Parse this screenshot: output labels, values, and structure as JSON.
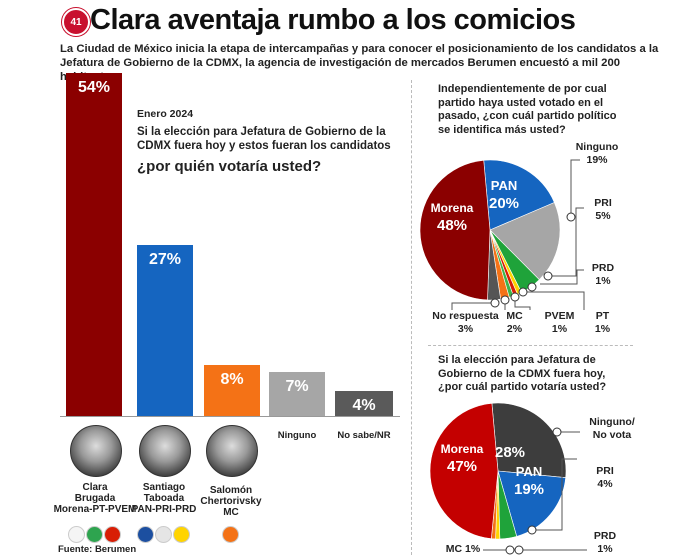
{
  "header": {
    "title": "Clara aventaja rumbo a los comicios",
    "logo": "41",
    "intro": "La Ciudad de México inicia la etapa de intercampañas y para conocer el posicionamiento de los candidatos a la Jefatura de Gobierno de la CDMX, la agencia de investigación de mercados Berumen encuestó a mil 200 habitantes."
  },
  "question": {
    "date": "Enero 2024",
    "line": "Si la elección para Jefatura de Gobierno de la CDMX fuera hoy y estos fueran los candidatos",
    "bold": "¿por quién votaría usted?"
  },
  "source": "Fuente: Berumen",
  "chart_data": [
    {
      "type": "bar",
      "title": "¿por quién votaría usted?",
      "categories": [
        "Clara Brugada Morena-PT-PVEM",
        "Santiago Taboada PAN-PRI-PRD",
        "Salomón Chertorivsky MC",
        "Ninguno",
        "No sabe/NR"
      ],
      "values": [
        54,
        27,
        8,
        7,
        4
      ],
      "labels": [
        "54%",
        "27%",
        "8%",
        "7%",
        "4%"
      ],
      "colors": [
        "#8b0000",
        "#1565c0",
        "#f47216",
        "#a6a6a6",
        "#5a5a5a"
      ],
      "ylim": [
        0,
        54
      ],
      "candidates": [
        {
          "name1": "Clara",
          "name2": "Brugada",
          "party": "Morena-PT-PVEM",
          "logos": [
            "#f5f5f5",
            "#2ea44f",
            "#d81e05"
          ]
        },
        {
          "name1": "Santiago",
          "name2": "Taboada",
          "party": "PAN-PRI-PRD",
          "logos": [
            "#1c4fa0",
            "#e5e5e5",
            "#ffd400"
          ]
        },
        {
          "name1": "Salomón",
          "name2": "Chertorivsky",
          "party": "MC",
          "logos": [
            "#f47216"
          ]
        }
      ],
      "option_labels": [
        "Ninguno",
        "No sabe/NR"
      ]
    },
    {
      "type": "pie",
      "title": "Independientemente de por cual partido haya usted votado en el pasado, ¿con cuál partido político se identifica más usted?",
      "slices": [
        {
          "name": "PAN",
          "value": 20,
          "color": "#1565c0"
        },
        {
          "name": "Ninguno",
          "value": 19,
          "color": "#a6a6a6"
        },
        {
          "name": "PRI",
          "value": 5,
          "color": "#1fa33a"
        },
        {
          "name": "PRD",
          "value": 1,
          "color": "#ffd400"
        },
        {
          "name": "PT",
          "value": 1,
          "color": "#d81e05"
        },
        {
          "name": "PVEM",
          "value": 1,
          "color": "#3cb44b"
        },
        {
          "name": "MC",
          "value": 2,
          "color": "#f47216"
        },
        {
          "name": "No respuesta",
          "value": 3,
          "color": "#555555"
        },
        {
          "name": "Morena",
          "value": 48,
          "color": "#8b0000"
        }
      ],
      "labels": {
        "Morena": "Morena",
        "Morena_v": "48%",
        "PAN": "PAN",
        "PAN_v": "20%",
        "Ninguno": "Ninguno",
        "Ninguno_v": "19%",
        "PRI": "PRI",
        "PRI_v": "5%",
        "PRD": "PRD",
        "PRD_v": "1%",
        "NR": "No respuesta",
        "NR_v": "3%",
        "MC": "MC",
        "MC_v": "2%",
        "PVEM": "PVEM",
        "PVEM_v": "1%",
        "PT": "PT",
        "PT_v": "1%"
      }
    },
    {
      "type": "pie",
      "title": "Si la elección para Jefatura de Gobierno de la CDMX fuera hoy, ¿por cuál partido votaría usted?",
      "slices": [
        {
          "name": "Ninguno/No vota",
          "value": 28,
          "color": "#3d3d3d"
        },
        {
          "name": "PAN",
          "value": 19,
          "color": "#1565c0"
        },
        {
          "name": "PRI",
          "value": 4,
          "color": "#1fa33a"
        },
        {
          "name": "PRD",
          "value": 1,
          "color": "#ffd400"
        },
        {
          "name": "MC",
          "value": 1,
          "color": "#f47216"
        },
        {
          "name": "Morena",
          "value": 47,
          "color": "#c40000"
        }
      ],
      "labels": {
        "Ninguno1": "Ninguno/",
        "Ninguno2": "No vota",
        "Ninguno_v": "28%",
        "PAN": "PAN",
        "PAN_v": "19%",
        "Morena": "Morena",
        "Morena_v": "47%",
        "PRI": "PRI",
        "PRI_v": "4%",
        "PRD": "PRD",
        "PRD_v": "1%",
        "MC": "MC  1%"
      }
    }
  ]
}
